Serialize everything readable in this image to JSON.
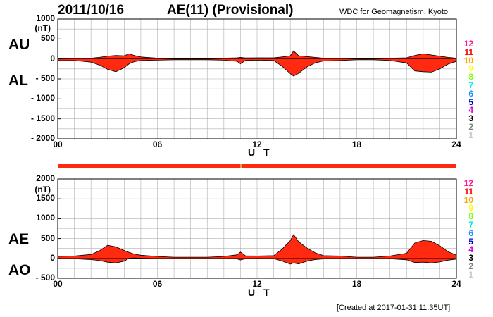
{
  "header": {
    "date": "2011/10/16",
    "title": "AE(11) (Provisional)",
    "source": "WDC for Geomagnetism, Kyoto"
  },
  "footer": {
    "created": "[Created at 2017-01-31 11:35UT]"
  },
  "colors": {
    "fill": "#ff2a10",
    "grid": "#b0b0b0",
    "line": "#000000",
    "bar": "#ff2a10",
    "bar_gap": "#e8a040"
  },
  "level_scale": [
    {
      "label": "12",
      "color": "#ff1493"
    },
    {
      "label": "11",
      "color": "#ff0000"
    },
    {
      "label": "10",
      "color": "#ffa500"
    },
    {
      "label": "9",
      "color": "#ffff00"
    },
    {
      "label": "8",
      "color": "#7fff00"
    },
    {
      "label": "7",
      "color": "#00e5ee"
    },
    {
      "label": "6",
      "color": "#1e90ff"
    },
    {
      "label": "5",
      "color": "#0000cd"
    },
    {
      "label": "4",
      "color": "#cc00cc"
    },
    {
      "label": "3",
      "color": "#000000"
    },
    {
      "label": "2",
      "color": "#808080"
    },
    {
      "label": "1",
      "color": "#c8c8c8"
    }
  ],
  "chart_data": [
    {
      "type": "area",
      "labels": {
        "upper": "AU",
        "lower": "AL",
        "unit": "(nT)"
      },
      "xlabel": "U T",
      "xlim": [
        0,
        24
      ],
      "ylim": [
        -2000,
        1000
      ],
      "xticks": [
        {
          "v": 0,
          "label": "00"
        },
        {
          "v": 6,
          "label": "06"
        },
        {
          "v": 12,
          "label": "12"
        },
        {
          "v": 18,
          "label": "18"
        },
        {
          "v": 24,
          "label": "24"
        }
      ],
      "yticks": [
        {
          "v": 1000,
          "label": "1000"
        },
        {
          "v": 500,
          "label": "500"
        },
        {
          "v": 0,
          "label": "0"
        },
        {
          "v": -500,
          "label": "- 500"
        },
        {
          "v": -1000,
          "label": "- 1000"
        },
        {
          "v": -1500,
          "label": "- 1500"
        },
        {
          "v": -2000,
          "label": "- 2000"
        }
      ],
      "series": [
        {
          "key": "AU",
          "x": [
            0,
            1,
            2,
            2.5,
            3,
            3.5,
            4,
            4.3,
            4.6,
            5,
            6,
            7,
            8,
            9,
            10,
            10.8,
            11,
            11.3,
            12,
            13,
            13.5,
            14,
            14.2,
            14.5,
            15,
            15.5,
            16,
            17,
            18,
            19,
            20,
            21,
            21.5,
            22,
            22.5,
            23,
            23.5,
            24
          ],
          "y": [
            10,
            20,
            20,
            40,
            70,
            90,
            80,
            130,
            90,
            50,
            20,
            10,
            10,
            10,
            20,
            30,
            40,
            25,
            30,
            30,
            50,
            80,
            200,
            80,
            60,
            40,
            20,
            20,
            10,
            10,
            20,
            30,
            90,
            130,
            100,
            70,
            40,
            20
          ]
        },
        {
          "key": "AL",
          "x": [
            0,
            1,
            2,
            2.5,
            3,
            3.5,
            4,
            4.3,
            4.6,
            5,
            6,
            7,
            8,
            9,
            10,
            10.8,
            11,
            11.3,
            12,
            13,
            13.5,
            14,
            14.2,
            14.5,
            15,
            15.5,
            16,
            17,
            18,
            19,
            20,
            21,
            21.5,
            22,
            22.5,
            23,
            23.5,
            24
          ],
          "y": [
            -40,
            -40,
            -80,
            -150,
            -260,
            -320,
            -220,
            -120,
            -70,
            -40,
            -30,
            -20,
            -20,
            -20,
            -30,
            -60,
            -120,
            -40,
            -30,
            -40,
            -180,
            -370,
            -430,
            -360,
            -200,
            -100,
            -50,
            -40,
            -20,
            -20,
            -40,
            -100,
            -300,
            -320,
            -330,
            -250,
            -130,
            -60
          ]
        }
      ]
    },
    {
      "type": "area",
      "labels": {
        "upper": "AE",
        "lower": "AO",
        "unit": "(nT)"
      },
      "xlabel": "U T",
      "xlim": [
        0,
        24
      ],
      "ylim": [
        -500,
        2000
      ],
      "xticks": [
        {
          "v": 0,
          "label": "00"
        },
        {
          "v": 6,
          "label": "06"
        },
        {
          "v": 12,
          "label": "12"
        },
        {
          "v": 18,
          "label": "18"
        },
        {
          "v": 24,
          "label": "24"
        }
      ],
      "yticks": [
        {
          "v": 2000,
          "label": "2000"
        },
        {
          "v": 1500,
          "label": "1500"
        },
        {
          "v": 1000,
          "label": "1000"
        },
        {
          "v": 500,
          "label": "500"
        },
        {
          "v": 0,
          "label": "0"
        },
        {
          "v": -500,
          "label": "- 500"
        }
      ],
      "series": [
        {
          "key": "AE",
          "x": [
            0,
            1,
            2,
            2.5,
            3,
            3.5,
            4,
            4.3,
            4.6,
            5,
            6,
            7,
            8,
            9,
            10,
            10.8,
            11,
            11.3,
            12,
            13,
            13.5,
            14,
            14.2,
            14.5,
            15,
            15.5,
            16,
            17,
            18,
            19,
            20,
            21,
            21.5,
            22,
            22.5,
            23,
            23.5,
            24
          ],
          "y": [
            50,
            60,
            100,
            190,
            330,
            290,
            200,
            150,
            110,
            80,
            50,
            30,
            30,
            30,
            50,
            90,
            160,
            65,
            60,
            70,
            230,
            450,
            600,
            420,
            260,
            140,
            70,
            60,
            30,
            30,
            60,
            130,
            390,
            450,
            430,
            320,
            170,
            80
          ]
        },
        {
          "key": "AO",
          "x": [
            0,
            1,
            2,
            2.5,
            3,
            3.5,
            4,
            4.3,
            4.6,
            5,
            6,
            7,
            8,
            9,
            10,
            10.8,
            11,
            11.3,
            12,
            13,
            13.5,
            14,
            14.2,
            14.5,
            15,
            15.5,
            16,
            17,
            18,
            19,
            20,
            21,
            21.5,
            22,
            22.5,
            23,
            23.5,
            24
          ],
          "y": [
            -15,
            -10,
            -30,
            -55,
            -95,
            -115,
            -70,
            5,
            10,
            5,
            -5,
            -5,
            -5,
            -5,
            -5,
            -15,
            -40,
            -8,
            0,
            -5,
            -65,
            -145,
            -115,
            -140,
            -70,
            -30,
            -15,
            -10,
            -5,
            -5,
            -10,
            -35,
            -105,
            -95,
            -115,
            -90,
            -45,
            -20
          ]
        }
      ]
    }
  ]
}
